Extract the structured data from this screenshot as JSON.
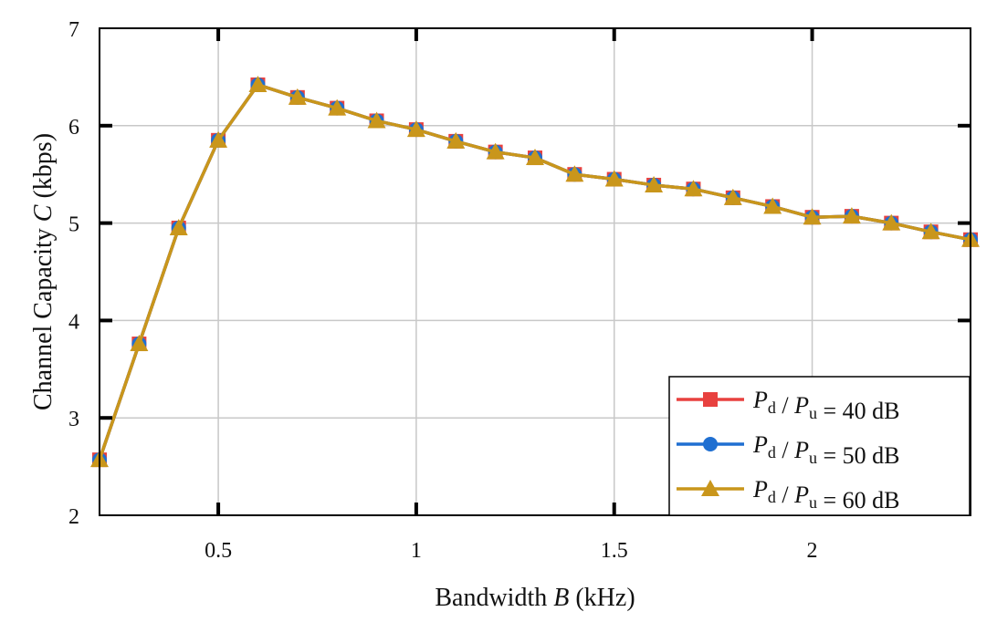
{
  "chart_data": {
    "type": "line",
    "xlabel": {
      "prefix": "Bandwidth ",
      "var": "B",
      "suffix": " (kHz)"
    },
    "ylabel": {
      "prefix": "Channel Capacity  ",
      "var": "C",
      "suffix": " (kbps)"
    },
    "xlim": [
      0.2,
      2.4
    ],
    "ylim": [
      2,
      7
    ],
    "xticks": [
      0.5,
      1,
      1.5,
      2
    ],
    "xtick_labels": [
      "0.5",
      "1",
      "1.5",
      "2"
    ],
    "yticks": [
      2,
      3,
      4,
      5,
      6,
      7
    ],
    "ytick_labels": [
      "2",
      "3",
      "4",
      "5",
      "6",
      "7"
    ],
    "grid": true,
    "legend_position": "bottom-right",
    "x": [
      0.2,
      0.3,
      0.4,
      0.5,
      0.6,
      0.7,
      0.8,
      0.9,
      1.0,
      1.1,
      1.2,
      1.3,
      1.4,
      1.5,
      1.6,
      1.7,
      1.8,
      1.9,
      2.0,
      2.1,
      2.2,
      2.3,
      2.4
    ],
    "series": [
      {
        "legend": {
          "p1": "P",
          "s1": "d",
          "mid": " / ",
          "p2": "P",
          "s2": "u",
          "rest": " = 40 dB"
        },
        "marker": "square",
        "color": "#e8413f",
        "values": [
          2.57,
          3.76,
          4.95,
          5.85,
          6.42,
          6.29,
          6.18,
          6.05,
          5.96,
          5.84,
          5.73,
          5.67,
          5.5,
          5.45,
          5.39,
          5.35,
          5.26,
          5.17,
          5.06,
          5.07,
          5.0,
          4.91,
          4.83
        ]
      },
      {
        "legend": {
          "p1": "P",
          "s1": "d",
          "mid": " / ",
          "p2": "P",
          "s2": "u",
          "rest": " = 50 dB"
        },
        "marker": "circle",
        "color": "#1f6fd1",
        "values": [
          2.57,
          3.76,
          4.95,
          5.85,
          6.42,
          6.29,
          6.18,
          6.05,
          5.96,
          5.84,
          5.73,
          5.67,
          5.5,
          5.45,
          5.39,
          5.35,
          5.26,
          5.17,
          5.06,
          5.07,
          5.0,
          4.91,
          4.83
        ]
      },
      {
        "legend": {
          "p1": "P",
          "s1": "d",
          "mid": " / ",
          "p2": "P",
          "s2": "u",
          "rest": " = 60 dB"
        },
        "marker": "triangle",
        "color": "#c9961b",
        "values": [
          2.57,
          3.76,
          4.95,
          5.85,
          6.42,
          6.29,
          6.18,
          6.05,
          5.96,
          5.84,
          5.73,
          5.67,
          5.5,
          5.45,
          5.39,
          5.35,
          5.26,
          5.17,
          5.06,
          5.07,
          5.0,
          4.91,
          4.83
        ]
      }
    ]
  }
}
